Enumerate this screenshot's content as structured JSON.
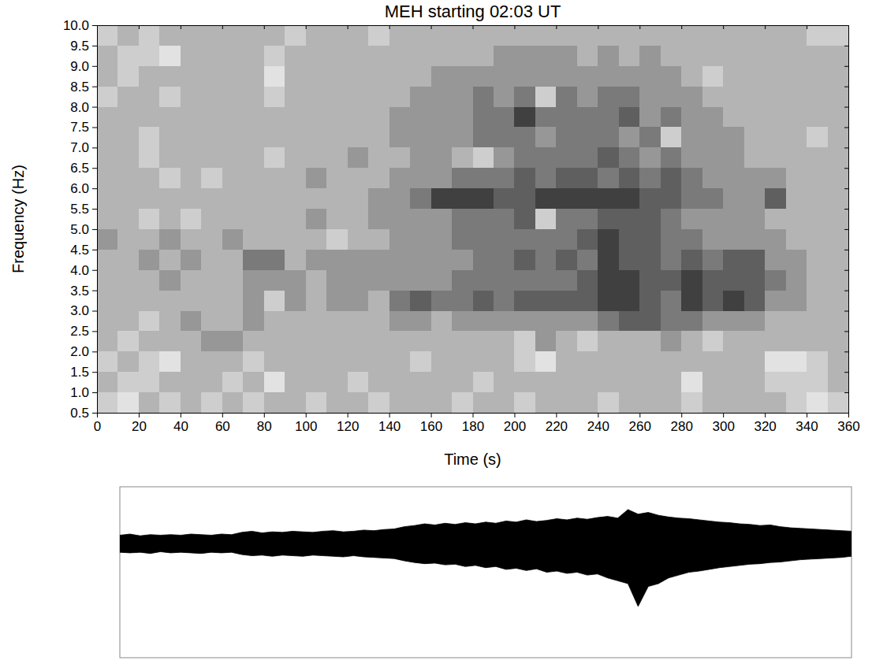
{
  "chart_data": [
    {
      "type": "heatmap",
      "title": "MEH starting 02:03 UT",
      "xlabel": "Time (s)",
      "ylabel": "Frequency (Hz)",
      "xlim": [
        0,
        360
      ],
      "ylim": [
        0.5,
        10
      ],
      "xticks": [
        0,
        20,
        40,
        60,
        80,
        100,
        120,
        140,
        160,
        180,
        200,
        220,
        240,
        260,
        280,
        300,
        320,
        340,
        360
      ],
      "yticks": [
        0.5,
        {
          "value": 1,
          "label": "1.0"
        },
        1.5,
        {
          "value": 2,
          "label": "2.0"
        },
        2.5,
        {
          "value": 3,
          "label": "3.0"
        },
        3.5,
        {
          "value": 4,
          "label": "4.0"
        },
        4.5,
        {
          "value": 5,
          "label": "5.0"
        },
        5.5,
        {
          "value": 6,
          "label": "6.0"
        },
        6.5,
        {
          "value": 7,
          "label": "7.0"
        },
        7.5,
        {
          "value": 8,
          "label": "8.0"
        },
        8.5,
        {
          "value": 9,
          "label": "9.0"
        },
        9.5,
        {
          "value": 10,
          "label": "10.0"
        }
      ],
      "x": [
        0,
        10,
        20,
        30,
        40,
        50,
        60,
        70,
        80,
        90,
        100,
        110,
        120,
        130,
        140,
        150,
        160,
        170,
        180,
        190,
        200,
        210,
        220,
        230,
        240,
        250,
        260,
        270,
        280,
        290,
        300,
        310,
        320,
        330,
        340,
        350,
        360
      ],
      "y": [
        0.5,
        1,
        1.5,
        2,
        2.5,
        3,
        3.5,
        4,
        4.5,
        5,
        5.5,
        6,
        6.5,
        7,
        7.5,
        8,
        8.5,
        9,
        9.5,
        10
      ],
      "zlim": [
        0,
        10
      ],
      "z": [
        [
          3,
          2,
          4,
          3,
          4,
          3,
          4,
          3,
          4,
          4,
          3,
          4,
          4,
          3,
          4,
          4,
          4,
          3,
          4,
          4,
          3,
          4,
          4,
          4,
          3,
          4,
          4,
          4,
          3,
          4,
          4,
          4,
          4,
          3,
          2,
          3
        ],
        [
          4,
          3,
          3,
          4,
          4,
          4,
          3,
          4,
          2,
          4,
          4,
          4,
          3,
          4,
          4,
          4,
          4,
          4,
          3,
          4,
          4,
          4,
          4,
          4,
          4,
          4,
          4,
          4,
          2,
          4,
          4,
          4,
          3,
          3,
          3,
          4
        ],
        [
          3,
          4,
          3,
          2,
          4,
          4,
          4,
          3,
          4,
          4,
          4,
          4,
          4,
          4,
          4,
          3,
          4,
          4,
          4,
          4,
          3,
          2,
          4,
          4,
          4,
          4,
          4,
          4,
          4,
          4,
          4,
          4,
          2,
          2,
          3,
          4
        ],
        [
          4,
          3,
          4,
          4,
          4,
          5,
          5,
          4,
          4,
          4,
          4,
          4,
          4,
          4,
          4,
          4,
          4,
          4,
          4,
          4,
          3,
          5,
          4,
          3,
          4,
          4,
          4,
          5,
          4,
          3,
          4,
          4,
          4,
          4,
          4,
          4
        ],
        [
          4,
          4,
          3,
          4,
          5,
          4,
          4,
          5,
          4,
          4,
          4,
          4,
          4,
          4,
          5,
          5,
          4,
          5,
          5,
          5,
          5,
          5,
          5,
          5,
          6,
          7,
          7,
          6,
          6,
          5,
          5,
          5,
          4,
          4,
          4,
          4
        ],
        [
          4,
          4,
          4,
          4,
          4,
          4,
          4,
          5,
          3,
          5,
          4,
          5,
          5,
          4,
          6,
          7,
          6,
          6,
          7,
          6,
          7,
          7,
          7,
          7,
          8,
          8,
          7,
          6,
          8,
          7,
          8,
          7,
          5,
          5,
          4,
          4
        ],
        [
          4,
          4,
          4,
          5,
          4,
          4,
          4,
          5,
          5,
          5,
          4,
          5,
          5,
          5,
          5,
          5,
          5,
          6,
          6,
          6,
          6,
          6,
          6,
          7,
          8,
          8,
          7,
          7,
          8,
          7,
          7,
          7,
          6,
          5,
          4,
          4
        ],
        [
          4,
          4,
          5,
          4,
          5,
          4,
          4,
          6,
          6,
          4,
          5,
          5,
          5,
          5,
          5,
          5,
          5,
          5,
          6,
          6,
          7,
          6,
          7,
          6,
          8,
          7,
          7,
          6,
          7,
          6,
          7,
          7,
          5,
          5,
          4,
          4
        ],
        [
          5,
          4,
          4,
          5,
          4,
          4,
          5,
          4,
          4,
          4,
          4,
          3,
          4,
          4,
          5,
          5,
          5,
          6,
          6,
          6,
          6,
          6,
          6,
          7,
          8,
          7,
          7,
          6,
          6,
          5,
          5,
          5,
          5,
          4,
          4,
          4
        ],
        [
          4,
          4,
          3,
          4,
          3,
          4,
          4,
          4,
          4,
          4,
          5,
          4,
          4,
          5,
          5,
          5,
          5,
          6,
          6,
          6,
          7,
          3,
          6,
          6,
          7,
          7,
          7,
          6,
          5,
          5,
          5,
          5,
          4,
          4,
          4,
          4
        ],
        [
          4,
          4,
          4,
          4,
          4,
          4,
          4,
          4,
          4,
          4,
          4,
          4,
          4,
          5,
          5,
          6,
          8,
          8,
          8,
          7,
          7,
          8,
          8,
          8,
          8,
          8,
          7,
          7,
          6,
          6,
          5,
          5,
          7,
          4,
          4,
          4
        ],
        [
          4,
          4,
          4,
          3,
          4,
          3,
          4,
          4,
          4,
          4,
          5,
          4,
          4,
          4,
          5,
          5,
          5,
          6,
          6,
          6,
          7,
          6,
          7,
          7,
          6,
          7,
          6,
          7,
          6,
          5,
          5,
          5,
          5,
          4,
          4,
          4
        ],
        [
          4,
          4,
          3,
          4,
          4,
          4,
          4,
          4,
          3,
          4,
          4,
          4,
          5,
          4,
          4,
          5,
          5,
          4,
          3,
          5,
          6,
          6,
          6,
          6,
          7,
          6,
          5,
          6,
          5,
          5,
          5,
          4,
          4,
          4,
          4,
          4
        ],
        [
          4,
          4,
          3,
          4,
          4,
          4,
          4,
          4,
          4,
          4,
          4,
          4,
          4,
          4,
          5,
          5,
          5,
          5,
          6,
          6,
          6,
          5,
          6,
          6,
          6,
          5,
          6,
          3,
          5,
          5,
          5,
          4,
          4,
          4,
          3,
          4
        ],
        [
          4,
          4,
          4,
          4,
          4,
          4,
          4,
          4,
          4,
          4,
          4,
          4,
          4,
          4,
          5,
          5,
          5,
          5,
          6,
          6,
          8,
          6,
          6,
          6,
          6,
          7,
          5,
          6,
          5,
          5,
          4,
          4,
          4,
          4,
          4,
          4
        ],
        [
          3,
          4,
          4,
          3,
          4,
          4,
          4,
          4,
          3,
          4,
          4,
          4,
          4,
          4,
          4,
          5,
          5,
          5,
          6,
          5,
          6,
          3,
          6,
          5,
          6,
          6,
          5,
          5,
          5,
          4,
          4,
          4,
          4,
          4,
          4,
          4
        ],
        [
          4,
          3,
          4,
          4,
          4,
          4,
          4,
          4,
          2,
          4,
          4,
          4,
          4,
          4,
          4,
          4,
          5,
          5,
          5,
          5,
          5,
          5,
          5,
          5,
          5,
          5,
          5,
          5,
          4,
          3,
          4,
          4,
          4,
          4,
          4,
          4
        ],
        [
          4,
          3,
          3,
          2,
          4,
          4,
          4,
          4,
          3,
          4,
          4,
          4,
          4,
          4,
          4,
          4,
          4,
          4,
          4,
          5,
          5,
          5,
          5,
          4,
          5,
          4,
          5,
          4,
          4,
          4,
          4,
          4,
          4,
          4,
          4,
          4
        ],
        [
          3,
          4,
          3,
          4,
          4,
          4,
          4,
          4,
          4,
          3,
          4,
          4,
          4,
          3,
          4,
          4,
          4,
          4,
          4,
          4,
          4,
          4,
          4,
          4,
          4,
          4,
          4,
          4,
          4,
          4,
          4,
          4,
          4,
          4,
          3,
          3
        ]
      ]
    },
    {
      "type": "area",
      "tick_labels": false,
      "color": "#000000",
      "xlim": [
        0,
        360
      ],
      "ylim": [
        -2,
        1
      ],
      "x": [
        0,
        5,
        10,
        15,
        20,
        25,
        30,
        35,
        40,
        45,
        50,
        55,
        60,
        65,
        70,
        75,
        80,
        85,
        90,
        95,
        100,
        105,
        110,
        115,
        120,
        125,
        130,
        135,
        140,
        145,
        150,
        155,
        160,
        165,
        170,
        175,
        180,
        185,
        190,
        195,
        200,
        205,
        210,
        215,
        220,
        225,
        230,
        235,
        240,
        245,
        250,
        255,
        260,
        265,
        270,
        275,
        280,
        285,
        290,
        295,
        300,
        305,
        310,
        315,
        320,
        325,
        330,
        335,
        340,
        345,
        350,
        355,
        360
      ],
      "values_max": [
        0.15,
        0.17,
        0.14,
        0.16,
        0.15,
        0.16,
        0.15,
        0.17,
        0.16,
        0.15,
        0.17,
        0.16,
        0.2,
        0.22,
        0.19,
        0.21,
        0.2,
        0.22,
        0.21,
        0.2,
        0.22,
        0.23,
        0.21,
        0.22,
        0.24,
        0.23,
        0.25,
        0.26,
        0.3,
        0.32,
        0.35,
        0.33,
        0.36,
        0.34,
        0.37,
        0.35,
        0.38,
        0.36,
        0.4,
        0.38,
        0.42,
        0.39,
        0.41,
        0.44,
        0.42,
        0.45,
        0.43,
        0.46,
        0.48,
        0.45,
        0.6,
        0.52,
        0.55,
        0.5,
        0.47,
        0.45,
        0.44,
        0.42,
        0.4,
        0.38,
        0.37,
        0.35,
        0.34,
        0.32,
        0.33,
        0.3,
        0.28,
        0.27,
        0.26,
        0.25,
        0.24,
        0.23,
        0.22
      ],
      "values_min": [
        -0.15,
        -0.16,
        -0.15,
        -0.17,
        -0.14,
        -0.16,
        -0.15,
        -0.16,
        -0.17,
        -0.15,
        -0.16,
        -0.15,
        -0.19,
        -0.21,
        -0.2,
        -0.22,
        -0.2,
        -0.21,
        -0.22,
        -0.2,
        -0.21,
        -0.22,
        -0.23,
        -0.21,
        -0.23,
        -0.24,
        -0.25,
        -0.26,
        -0.3,
        -0.33,
        -0.35,
        -0.34,
        -0.37,
        -0.36,
        -0.4,
        -0.38,
        -0.42,
        -0.4,
        -0.45,
        -0.43,
        -0.47,
        -0.44,
        -0.5,
        -0.48,
        -0.52,
        -0.5,
        -0.55,
        -0.53,
        -0.6,
        -0.65,
        -0.7,
        -1.1,
        -0.75,
        -0.7,
        -0.6,
        -0.55,
        -0.5,
        -0.48,
        -0.45,
        -0.42,
        -0.4,
        -0.38,
        -0.36,
        -0.35,
        -0.33,
        -0.32,
        -0.3,
        -0.28,
        -0.27,
        -0.26,
        -0.25,
        -0.24,
        -0.22
      ]
    }
  ]
}
